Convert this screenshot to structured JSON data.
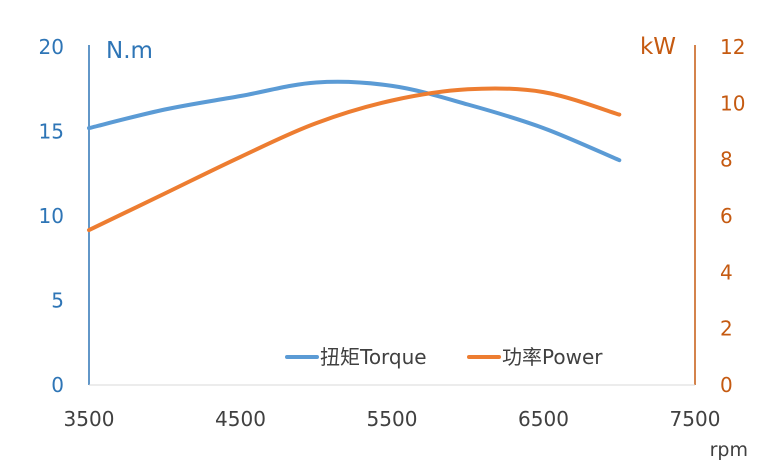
{
  "chart_data": {
    "type": "line",
    "left_unit": "N.m",
    "right_unit": "kW",
    "xlabel": "rpm",
    "x_ticks": [
      3500,
      4500,
      5500,
      6500,
      7500
    ],
    "xlim": [
      3500,
      7500
    ],
    "y_left_ticks": [
      0,
      5,
      10,
      15,
      20
    ],
    "y_left_lim": [
      0,
      20
    ],
    "y_right_ticks": [
      0,
      2,
      4,
      6,
      8,
      10,
      12
    ],
    "y_right_lim": [
      0,
      12
    ],
    "grid": false,
    "legend_position": "bottom-right",
    "colors": {
      "left_axis": "#2e75b6",
      "right_axis": "#c55a11",
      "torque": "#5b9bd5",
      "power": "#ed7d31",
      "baseline": "#d9d9d9"
    },
    "series": [
      {
        "name": "扭矩Torque",
        "axis": "left",
        "color": "#5b9bd5",
        "x": [
          3500,
          4000,
          4500,
          5000,
          5500,
          6000,
          6500,
          7000
        ],
        "y": [
          15.2,
          16.3,
          17.1,
          17.9,
          17.7,
          16.6,
          15.2,
          13.3
        ]
      },
      {
        "name": "功率Power",
        "axis": "right",
        "color": "#ed7d31",
        "x": [
          3500,
          4000,
          4500,
          5000,
          5500,
          6000,
          6500,
          7000
        ],
        "y": [
          5.5,
          6.8,
          8.1,
          9.3,
          10.1,
          10.5,
          10.4,
          9.6
        ]
      }
    ]
  }
}
